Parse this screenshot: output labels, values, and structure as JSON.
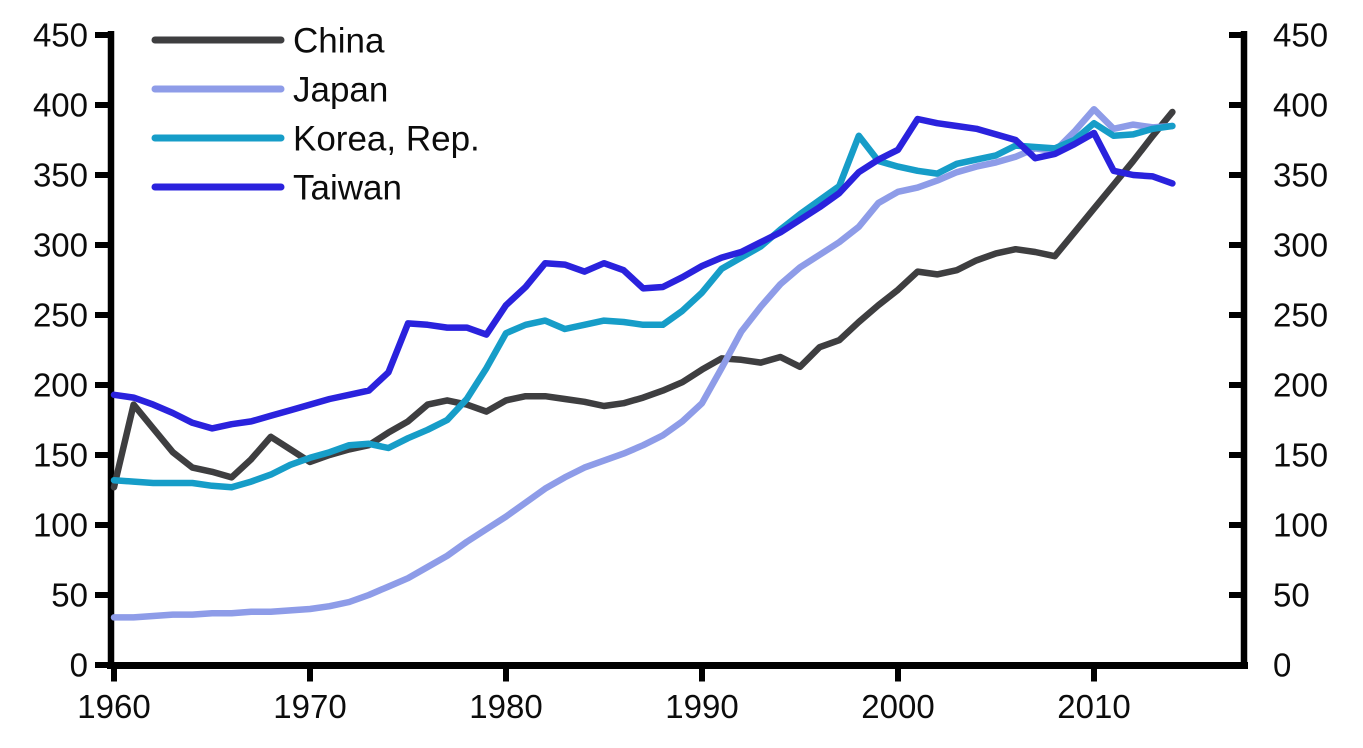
{
  "figure": {
    "background": "#ffffff",
    "axis_color": "#000000",
    "label_color": "#0c0c0c"
  },
  "legend": {
    "position": "top-left",
    "items": [
      {
        "label": "China",
        "color": "#3e3e40"
      },
      {
        "label": "Japan",
        "color": "#8e9ce8"
      },
      {
        "label": "Korea, Rep.",
        "color": "#169dc8"
      },
      {
        "label": "Taiwan",
        "color": "#2a22dd"
      }
    ]
  },
  "y_axis_left": {
    "tick_labels": [
      "0",
      "50",
      "100",
      "150",
      "200",
      "250",
      "300",
      "350",
      "400",
      "450"
    ]
  },
  "y_axis_right": {
    "tick_labels": [
      "0",
      "50",
      "100",
      "150",
      "200",
      "250",
      "300",
      "350",
      "400",
      "450"
    ]
  },
  "x_axis": {
    "tick_labels": [
      "1960",
      "1970",
      "1980",
      "1990",
      "2000",
      "2010"
    ]
  },
  "chart_data": {
    "type": "line",
    "title": "",
    "xlabel": "",
    "ylabel": "",
    "grid": false,
    "legend_position": "top-left",
    "dual_y_axis": true,
    "ylim": [
      0,
      450
    ],
    "yticks": [
      0,
      50,
      100,
      150,
      200,
      250,
      300,
      350,
      400,
      450
    ],
    "xticks": [
      1960,
      1970,
      1980,
      1990,
      2000,
      2010
    ],
    "x": [
      1960,
      1961,
      1962,
      1963,
      1964,
      1965,
      1966,
      1967,
      1968,
      1969,
      1970,
      1971,
      1972,
      1973,
      1974,
      1975,
      1976,
      1977,
      1978,
      1979,
      1980,
      1981,
      1982,
      1983,
      1984,
      1985,
      1986,
      1987,
      1988,
      1989,
      1990,
      1991,
      1992,
      1993,
      1994,
      1995,
      1996,
      1997,
      1998,
      1999,
      2000,
      2001,
      2002,
      2003,
      2004,
      2005,
      2006,
      2007,
      2008,
      2009,
      2010,
      2011,
      2012,
      2013,
      2014
    ],
    "series": [
      {
        "name": "China",
        "color": "#3e3e40",
        "values": [
          127,
          186,
          169,
          152,
          141,
          138,
          134,
          147,
          163,
          154,
          145,
          150,
          154,
          157,
          166,
          174,
          186,
          189,
          186,
          181,
          189,
          192,
          192,
          190,
          188,
          185,
          187,
          191,
          196,
          202,
          211,
          219,
          218,
          216,
          220,
          213,
          227,
          232,
          245,
          257,
          268,
          281,
          279,
          282,
          289,
          294,
          297,
          295,
          292,
          309,
          326,
          343,
          360,
          378,
          395
        ]
      },
      {
        "name": "Japan",
        "color": "#8e9ce8",
        "values": [
          34,
          34,
          35,
          36,
          36,
          37,
          37,
          38,
          38,
          39,
          40,
          42,
          45,
          50,
          56,
          62,
          70,
          78,
          88,
          97,
          106,
          116,
          126,
          134,
          141,
          146,
          151,
          157,
          164,
          174,
          187,
          212,
          238,
          256,
          272,
          284,
          293,
          302,
          313,
          330,
          338,
          341,
          346,
          352,
          356,
          359,
          363,
          369,
          367,
          381,
          397,
          383,
          386,
          384,
          385
        ]
      },
      {
        "name": "Korea, Rep.",
        "color": "#169dc8",
        "values": [
          132,
          131,
          130,
          130,
          130,
          128,
          127,
          131,
          136,
          143,
          148,
          152,
          157,
          158,
          155,
          162,
          168,
          175,
          190,
          212,
          237,
          243,
          246,
          240,
          243,
          246,
          245,
          243,
          243,
          253,
          266,
          283,
          291,
          299,
          311,
          322,
          332,
          342,
          378,
          360,
          356,
          353,
          351,
          358,
          361,
          364,
          371,
          370,
          369,
          375,
          387,
          378,
          379,
          383,
          385
        ]
      },
      {
        "name": "Taiwan",
        "color": "#2a22dd",
        "values": [
          193,
          191,
          186,
          180,
          173,
          169,
          172,
          174,
          178,
          182,
          186,
          190,
          193,
          196,
          209,
          244,
          243,
          241,
          241,
          236,
          257,
          270,
          287,
          286,
          281,
          287,
          282,
          269,
          270,
          277,
          285,
          291,
          295,
          302,
          309,
          318,
          327,
          337,
          352,
          361,
          368,
          390,
          387,
          385,
          383,
          379,
          375,
          362,
          365,
          372,
          380,
          353,
          350,
          349,
          344
        ]
      }
    ]
  }
}
